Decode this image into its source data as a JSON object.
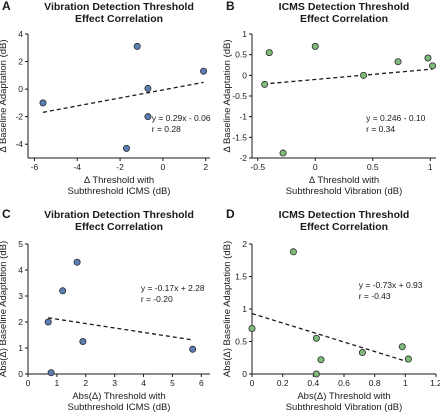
{
  "colors": {
    "blue": "#5b7fb5",
    "green": "#7fba78"
  },
  "chart_data": [
    {
      "id": "A",
      "type": "scatter",
      "panel_label": "A",
      "title": [
        "Vibration Detection Threshold",
        "Effect Correlation"
      ],
      "xlabel": [
        "Δ Threshold with",
        "Subthreshold ICMS (dB)"
      ],
      "ylabel": "Δ Baseline Adaptation (dB)",
      "xlim": [
        -6.3,
        2.2
      ],
      "ylim": [
        -5,
        4
      ],
      "xticks": [
        -6,
        -4,
        -2,
        0,
        2
      ],
      "yticks": [
        -4,
        -2,
        0,
        2,
        4
      ],
      "point_color": "#5b7fb5",
      "points": [
        [
          -5.6,
          -1.0
        ],
        [
          -1.2,
          3.1
        ],
        [
          -0.7,
          0.05
        ],
        [
          -0.7,
          -2.0
        ],
        [
          -1.7,
          -4.3
        ],
        [
          1.9,
          1.3
        ]
      ],
      "trend_x": [
        -5.6,
        1.9
      ],
      "trend_eq": {
        "slope": 0.29,
        "intercept": -0.06
      },
      "annotation": [
        "y = 0.29x - 0.06",
        "r = 0.28"
      ]
    },
    {
      "id": "B",
      "type": "scatter",
      "panel_label": "B",
      "title": [
        "ICMS Detection Threshold",
        "Effect Correlation"
      ],
      "xlabel": [
        "Δ Threshold with",
        "Subthreshold Vibration (dB)"
      ],
      "ylabel": "Δ Baseline Adaptation (dB)",
      "xlim": [
        -0.55,
        1.05
      ],
      "ylim": [
        -2,
        1
      ],
      "xticks": [
        -0.5,
        0,
        0.5,
        1
      ],
      "xtick_labels": [
        "-0.5",
        "0",
        "0.5",
        "1"
      ],
      "yticks": [
        -2,
        -1.5,
        -1,
        -0.5,
        0,
        0.5,
        1
      ],
      "ytick_labels": [
        "-2",
        "-1.5",
        "-1",
        "-0.5",
        "0",
        "0.5",
        "1"
      ],
      "point_color": "#7fba78",
      "points": [
        [
          -0.44,
          -0.22
        ],
        [
          -0.4,
          0.55
        ],
        [
          -0.28,
          -1.88
        ],
        [
          0.0,
          0.7
        ],
        [
          0.42,
          0.0
        ],
        [
          0.72,
          0.33
        ],
        [
          0.98,
          0.42
        ],
        [
          1.02,
          0.23
        ]
      ],
      "trend_x": [
        -0.45,
        1.02
      ],
      "trend_eq": {
        "slope": 0.246,
        "intercept": -0.1
      },
      "annotation": [
        "y = 0.246 - 0.10",
        "r = 0.34"
      ]
    },
    {
      "id": "C",
      "type": "scatter",
      "panel_label": "C",
      "title": [
        "Vibration Detection Threshold",
        "Effect Correlation"
      ],
      "xlabel": [
        "Abs(Δ)  Threshold with",
        "Subthreshold ICMS (dB)"
      ],
      "ylabel": "Abs(Δ)  Baseline Adaptation (dB)",
      "xlim": [
        0,
        6.3
      ],
      "ylim": [
        0,
        5
      ],
      "xticks": [
        0,
        1,
        2,
        3,
        4,
        5,
        6
      ],
      "yticks": [
        0,
        1,
        2,
        3,
        4,
        5
      ],
      "point_color": "#5b7fb5",
      "points": [
        [
          0.7,
          2.0
        ],
        [
          0.8,
          0.05
        ],
        [
          1.2,
          3.2
        ],
        [
          1.7,
          4.3
        ],
        [
          1.9,
          1.25
        ],
        [
          5.7,
          0.95
        ]
      ],
      "trend_x": [
        0.7,
        5.7
      ],
      "trend_eq": {
        "slope": -0.17,
        "intercept": 2.28
      },
      "annotation": [
        "y = -0.17x + 2.28",
        "r = -0.20"
      ]
    },
    {
      "id": "D",
      "type": "scatter",
      "panel_label": "D",
      "title": [
        "ICMS Detection Threshold",
        "Effect Correlation"
      ],
      "xlabel": [
        "Abs(Δ)  Threshold with",
        "Subthreshold Vibration (dB)"
      ],
      "ylabel": "Abs(Δ)  Baseline Adaptation (dB)",
      "xlim": [
        0,
        1.2
      ],
      "ylim": [
        0,
        2
      ],
      "xticks": [
        0,
        0.2,
        0.4,
        0.6,
        0.8,
        1.0,
        1.2
      ],
      "xtick_labels": [
        "0",
        "0.2",
        "0.4",
        "0.6",
        "0.8",
        "1",
        "1.2"
      ],
      "yticks": [
        0,
        0.5,
        1,
        1.5,
        2
      ],
      "ytick_labels": [
        "0",
        "0.5",
        "1",
        "1.5",
        "2"
      ],
      "point_color": "#7fba78",
      "points": [
        [
          0.0,
          0.7
        ],
        [
          0.27,
          1.88
        ],
        [
          0.42,
          0.55
        ],
        [
          0.42,
          0.0
        ],
        [
          0.45,
          0.22
        ],
        [
          0.72,
          0.33
        ],
        [
          0.98,
          0.42
        ],
        [
          1.02,
          0.23
        ]
      ],
      "trend_x": [
        0.0,
        1.02
      ],
      "trend_eq": {
        "slope": -0.73,
        "intercept": 0.93
      },
      "annotation": [
        "y = -0.73x + 0.93",
        "r = -0.43"
      ]
    }
  ]
}
